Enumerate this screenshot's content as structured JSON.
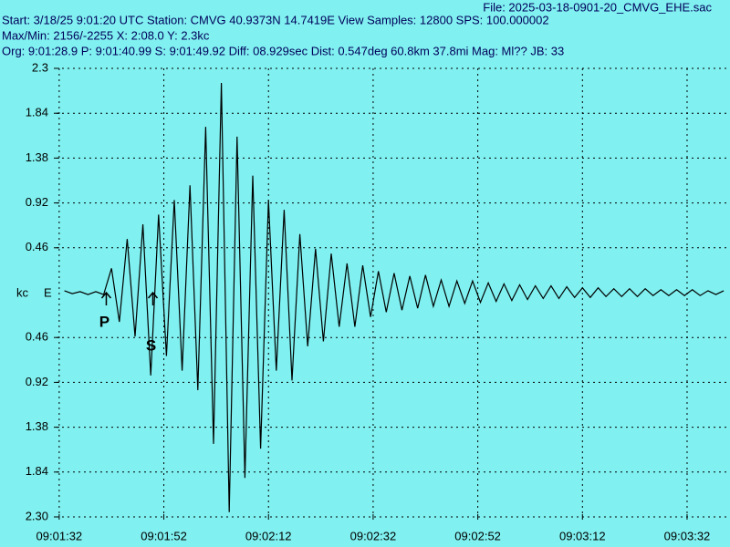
{
  "chart_data": {
    "type": "line",
    "file": "File: 2025-03-18-0901-20_CMVG_EHE.sac",
    "info_lines": [
      "Start: 3/18/25  9:01:20 UTC Station: CMVG 40.9373N 14.7419E View Samples: 12800  SPS: 100.000002",
      "Max/Min: 2156/-2255 X: 2:08.0 Y: 2.3kc",
      "Org: 9:01:28.9 P: 9:01:40.99 S: 9:01:49.92 Diff: 08.929sec Dist: 0.547deg 60.8km 37.8mi  Mag: Ml?? JB: 33"
    ],
    "y_label": "kc",
    "channel": "E",
    "x": [
      93,
      94.5,
      96,
      97.5,
      99,
      100.5,
      102,
      103.5,
      105,
      106.5,
      108,
      109.5,
      111,
      112.5,
      114,
      115.5,
      117,
      118.5,
      120,
      121.5,
      123,
      124.5,
      126,
      127.5,
      129,
      130.5,
      132,
      133.5,
      135,
      136.5,
      138,
      139.5,
      141,
      142.5,
      144,
      145.5,
      147,
      148.5,
      150,
      151.5,
      153,
      154.5,
      156,
      157.5,
      159,
      160.5,
      162,
      163.5,
      165,
      166.5,
      168,
      169.5,
      171,
      172.5,
      174,
      175.5,
      177,
      178.5,
      180,
      181.5,
      183,
      184.5,
      186,
      187.5,
      189,
      190.5,
      192,
      193.5,
      195,
      196.5,
      198,
      199.5,
      201,
      202.5,
      204,
      205.5,
      207,
      208.5,
      210,
      211.5,
      213,
      214.5,
      216,
      217.5,
      219
    ],
    "series": [
      {
        "name": "EHE",
        "color": "#000000",
        "values": [
          0.02,
          -0.01,
          0.01,
          -0.02,
          0.01,
          -0.02,
          0.25,
          -0.3,
          0.55,
          -0.45,
          0.7,
          -0.85,
          0.8,
          -0.65,
          0.95,
          -0.8,
          1.1,
          -1.0,
          1.7,
          -1.55,
          2.15,
          -2.25,
          1.6,
          -1.9,
          1.2,
          -1.6,
          0.95,
          -0.8,
          0.85,
          -0.9,
          0.6,
          -0.55,
          0.45,
          -0.5,
          0.4,
          -0.35,
          0.3,
          -0.35,
          0.28,
          -0.25,
          0.22,
          -0.2,
          0.2,
          -0.18,
          0.17,
          -0.16,
          0.18,
          -0.14,
          0.13,
          -0.14,
          0.12,
          -0.11,
          0.12,
          -0.1,
          0.1,
          -0.09,
          0.09,
          -0.08,
          0.08,
          -0.07,
          0.07,
          -0.06,
          0.07,
          -0.06,
          0.06,
          -0.05,
          0.05,
          -0.05,
          0.05,
          -0.04,
          0.04,
          -0.04,
          0.04,
          -0.04,
          0.04,
          -0.03,
          0.03,
          -0.03,
          0.03,
          -0.03,
          0.03,
          -0.03,
          0.02,
          -0.02,
          0.02
        ]
      }
    ],
    "picks": [
      {
        "label": "P",
        "x": 101.0
      },
      {
        "label": "S",
        "x": 109.9
      }
    ],
    "xlim": [
      91.5,
      220.2
    ],
    "xticks": [
      {
        "value": 92,
        "label": "09:01:32"
      },
      {
        "value": 112,
        "label": "09:01:52"
      },
      {
        "value": 132,
        "label": "09:02:12"
      },
      {
        "value": 152,
        "label": "09:02:32"
      },
      {
        "value": 172,
        "label": "09:02:52"
      },
      {
        "value": 192,
        "label": "09:03:12"
      },
      {
        "value": 212,
        "label": "09:03:32"
      }
    ],
    "ylim": [
      -2.3,
      2.3
    ],
    "yticks": [
      2.3,
      1.84,
      1.38,
      0.92,
      0.46,
      {
        "value": -0.46,
        "label": "0.46"
      },
      {
        "value": -0.92,
        "label": "0.92"
      },
      {
        "value": -1.38,
        "label": "1.38"
      },
      {
        "value": -1.84,
        "label": "1.84"
      },
      {
        "value": -2.3,
        "label": "2.30"
      }
    ],
    "grid": true
  }
}
